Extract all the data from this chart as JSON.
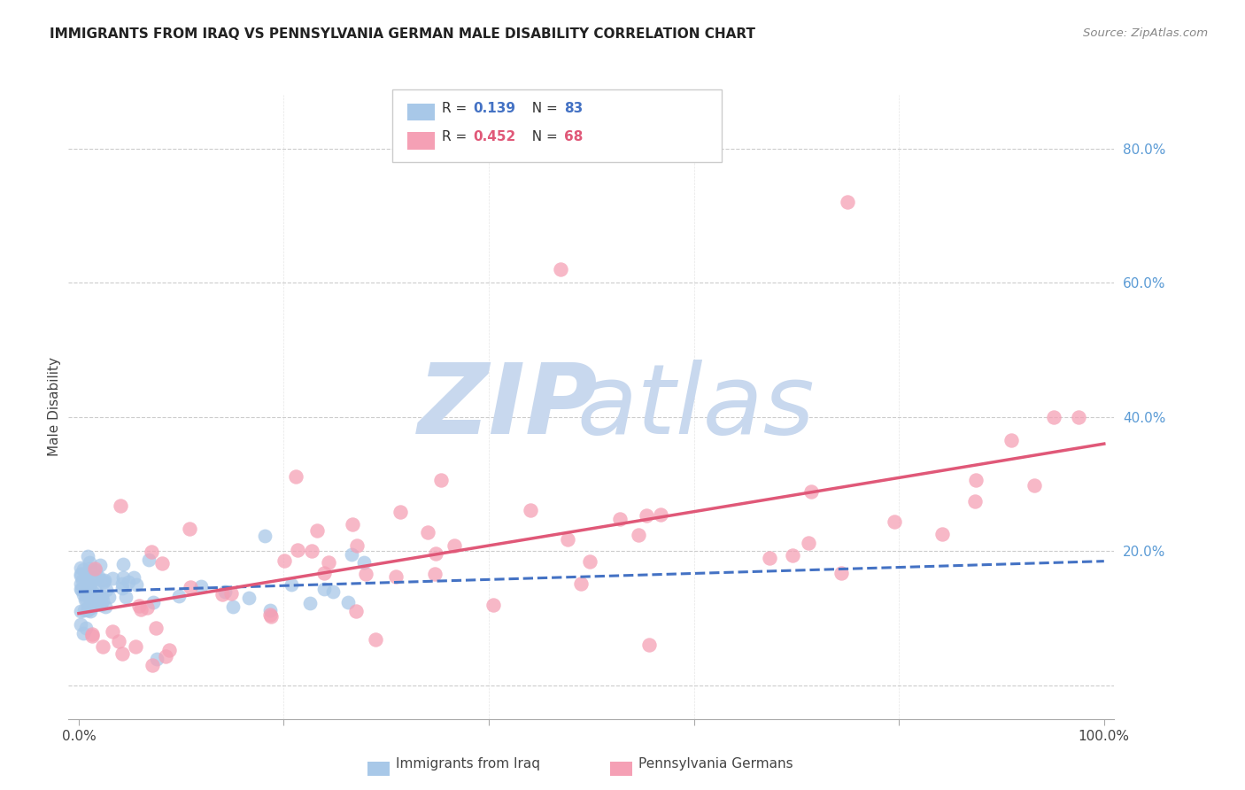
{
  "title": "IMMIGRANTS FROM IRAQ VS PENNSYLVANIA GERMAN MALE DISABILITY CORRELATION CHART",
  "source": "Source: ZipAtlas.com",
  "ylabel": "Male Disability",
  "r_iraq": 0.139,
  "n_iraq": 83,
  "r_pagerman": 0.452,
  "n_pagerman": 68,
  "color_iraq": "#a8c8e8",
  "color_pagerman": "#f5a0b5",
  "trendline_iraq": "#4472c4",
  "trendline_pagerman": "#e05878",
  "watermark_zip_color": "#c8d8ee",
  "watermark_atlas_color": "#c8d8ee",
  "background": "#ffffff",
  "grid_color": "#cccccc",
  "right_axis_color": "#5b9bd5",
  "legend_border_color": "#cccccc",
  "bottom_legend_label1": "Immigrants from Iraq",
  "bottom_legend_label2": "Pennsylvania Germans"
}
